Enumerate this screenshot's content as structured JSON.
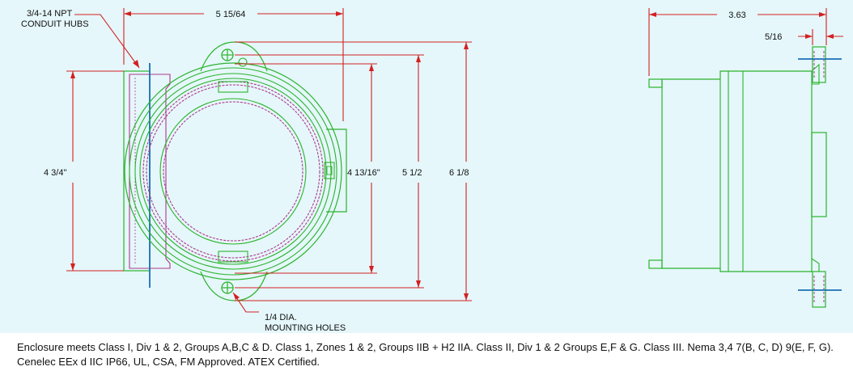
{
  "drawing": {
    "labels": {
      "conduit_hubs_line1": "3/4-14 NPT",
      "conduit_hubs_line2": "CONDUIT HUBS",
      "overall_width": "5 15/64",
      "body_height": "4 3/4\"",
      "inner_diameter": "4 13/16\"",
      "mounting_span": "5 1/2",
      "overall_height": "6 1/8",
      "mounting_holes_line1": "1/4 DIA.",
      "mounting_holes_line2": "MOUNTING HOLES",
      "depth": "3.63",
      "flange_thickness": "5/16"
    },
    "colors": {
      "background": "#e5f7fb",
      "outline": "#2bb32b",
      "hub_detail": "#b03a8a",
      "dimension": "#d42020",
      "centerline": "#1a6fb5"
    }
  },
  "caption": "Enclosure meets Class I, Div 1 & 2, Groups A,B,C & D. Class 1, Zones 1 & 2, Groups IIB + H2 IIA. Class II, Div 1 & 2 Groups E,F & G. Class III. Nema 3,4  7(B, C, D) 9(E, F, G). Cenelec EEx d IIC IP66, UL, CSA, FM Approved. ATEX Certified."
}
